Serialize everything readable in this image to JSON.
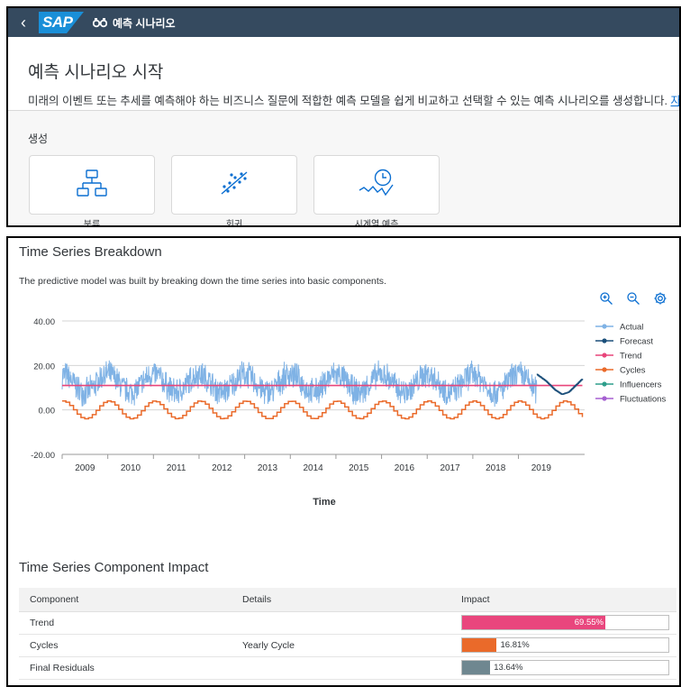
{
  "shell": {
    "logo": "SAP",
    "icon": "binoculars-icon",
    "title": "예측 시나리오"
  },
  "header": {
    "title": "예측 시나리오 시작",
    "description": "미래의 이벤트 또는 추세를 예측해야 하는 비즈니스 질문에 적합한 예측 모델을 쉽게 비교하고 선택할 수 있는 예측 시나리오를 생성합니다.",
    "more_link": "자세히..."
  },
  "create": {
    "label": "생성",
    "tiles": [
      {
        "label": "분류",
        "icon": "hierarchy-icon"
      },
      {
        "label": "회귀",
        "icon": "scatter-icon"
      },
      {
        "label": "시계열 예측",
        "icon": "time-series-icon"
      }
    ]
  },
  "breakdown": {
    "title": "Time Series Breakdown",
    "description": "The predictive model was built by breaking down the time series into basic components."
  },
  "chart_data": {
    "type": "line",
    "xlabel": "Time",
    "ylabel": "",
    "ylim": [
      -20,
      40
    ],
    "y_ticks": [
      "40.00",
      "20.00",
      "0.00",
      "-20.00"
    ],
    "x_ticks": [
      "2009",
      "2010",
      "2011",
      "2012",
      "2013",
      "2014",
      "2015",
      "2016",
      "2017",
      "2018",
      "2019"
    ],
    "legend": [
      "Actual",
      "Forecast",
      "Trend",
      "Cycles",
      "Influencers",
      "Fluctuations"
    ],
    "legend_position": "right",
    "colors": {
      "actual": "#7fb2e5",
      "forecast": "#1b4f7a",
      "trend": "#e8457a",
      "cycles": "#ea6a2a",
      "influencers": "#2e9e8b",
      "fluctuations": "#a55fd1"
    },
    "series": [
      {
        "name": "Actual",
        "x_range": [
          2008.5,
          2018.9
        ],
        "mean": 12,
        "seasonal_amplitude": 4,
        "noise": 7
      },
      {
        "name": "Forecast",
        "x": [
          2018.9,
          2019.1,
          2019.3,
          2019.45,
          2019.6,
          2019.75,
          2019.9
        ],
        "values": [
          16,
          13,
          9,
          7,
          8,
          11,
          14
        ]
      },
      {
        "name": "Trend",
        "x": [
          2008.5,
          2019.9
        ],
        "values": [
          11,
          11
        ]
      },
      {
        "name": "Cycles",
        "x_range": [
          2008.5,
          2019.9
        ],
        "mean": 0,
        "amplitude": 4,
        "period_years": 1
      }
    ]
  },
  "impact": {
    "title": "Time Series Component Impact",
    "columns": [
      "Component",
      "Details",
      "Impact"
    ],
    "rows": [
      {
        "component": "Trend",
        "details": "",
        "impact": "69.55%",
        "value": 0.6955,
        "color": "#e9467d"
      },
      {
        "component": "Cycles",
        "details": "Yearly Cycle",
        "impact": "16.81%",
        "value": 0.1681,
        "color": "#ea6a2a"
      },
      {
        "component": "Final Residuals",
        "details": "",
        "impact": "13.64%",
        "value": 0.1364,
        "color": "#6f8790"
      }
    ]
  }
}
